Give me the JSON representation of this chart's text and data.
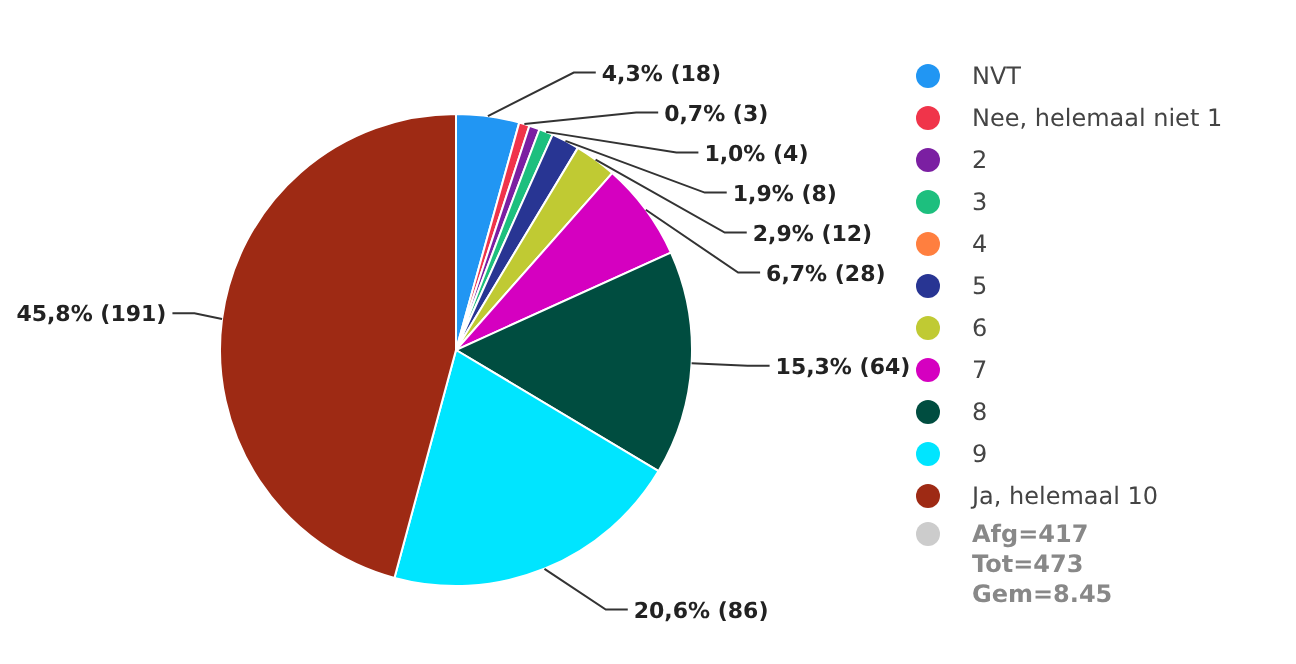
{
  "chart_data": {
    "type": "pie",
    "categories": [
      "NVT",
      "Nee, helemaal niet 1",
      "2",
      "3",
      "4",
      "5",
      "6",
      "7",
      "8",
      "9",
      "Ja, helemaal 10"
    ],
    "values": [
      18,
      3,
      3,
      4,
      0,
      8,
      12,
      28,
      64,
      86,
      191
    ],
    "colors": [
      "#2196f3",
      "#f0344a",
      "#7b1fa2",
      "#1dbf7e",
      "#ff7f3f",
      "#283593",
      "#c0ca33",
      "#d500c0",
      "#004d40",
      "#00e5ff",
      "#9e2a14"
    ],
    "value_labels": [
      "4,3% (18)",
      "0,7% (3)",
      null,
      "1,0% (4)",
      null,
      "1,9% (8)",
      "2,9% (12)",
      "6,7% (28)",
      "15,3% (64)",
      "20,6% (86)",
      "45,8% (191)"
    ],
    "legend": "right",
    "annotations": [
      "Afg=417",
      "Tot=473",
      "Gem=8.45"
    ]
  }
}
